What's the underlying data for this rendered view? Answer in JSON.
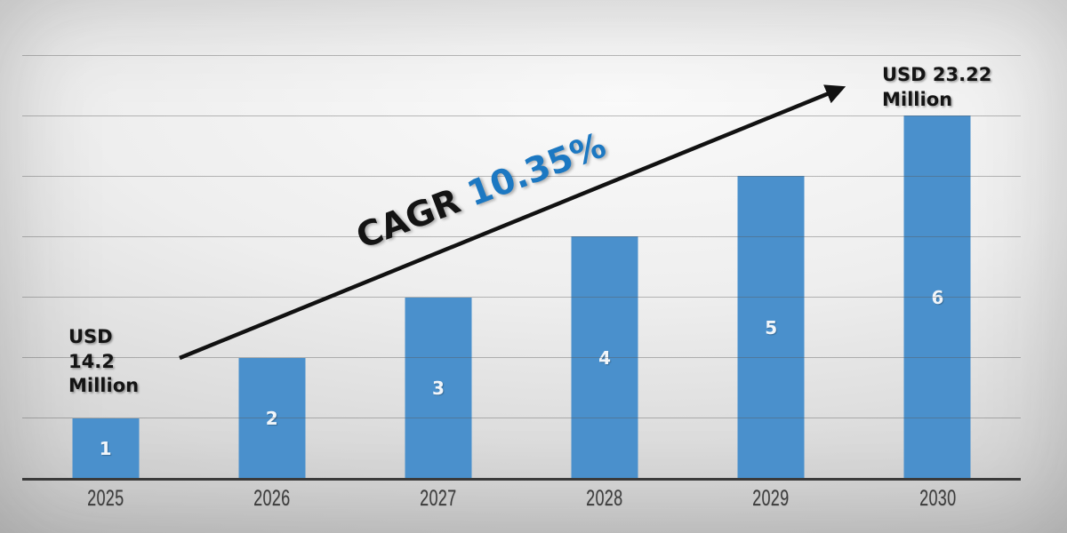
{
  "chart_data": {
    "type": "bar",
    "title": "",
    "xlabel": "",
    "ylabel": "",
    "categories": [
      "2025",
      "2026",
      "2027",
      "2028",
      "2029",
      "2030"
    ],
    "values": [
      1,
      2,
      3,
      4,
      5,
      6
    ],
    "bar_labels": [
      "1",
      "2",
      "3",
      "4",
      "5",
      "6"
    ],
    "ylim": [
      0,
      7
    ],
    "gridline_step": 1,
    "grid": true,
    "legend": "none",
    "annotations": {
      "start": {
        "lines": [
          "USD",
          "14.2",
          "Million"
        ],
        "attached_to": "2025"
      },
      "end": {
        "lines": [
          "USD 23.22",
          "Million"
        ],
        "attached_to": "2030"
      },
      "cagr": {
        "prefix": "CAGR",
        "value": "10.35%"
      }
    },
    "colors": {
      "bar": "#4A90CC",
      "bar_label": "#F2F6FA",
      "cagr_value": "#1C78C2",
      "annotation_text": "#141414",
      "year_label": "#3C3C3C",
      "axis_line": "#3A3A3A",
      "gridline": "#9E9E9E",
      "arrow": "#111111",
      "background_center": "#FAFAFA",
      "background_edge": "#C3C3C3"
    }
  }
}
